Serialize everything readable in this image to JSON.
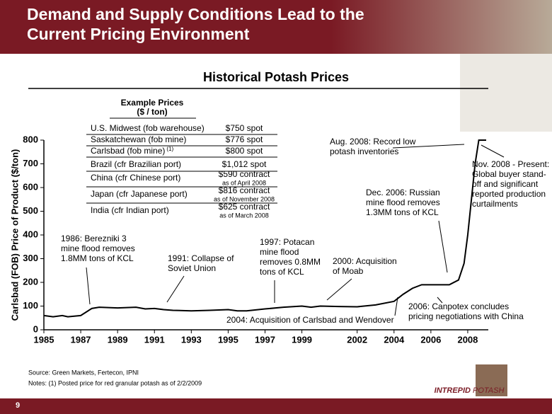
{
  "header": {
    "title_lines": [
      "Demand and Supply Conditions Lead to the",
      "Current Pricing Environment"
    ],
    "page_number": "9"
  },
  "price_table": {
    "title": "Example Prices",
    "subtitle": "($ / ton)",
    "rows": [
      {
        "label": "U.S. Midwest (fob warehouse)",
        "price": "$750 spot"
      },
      {
        "label": "Saskatchewan (fob mine)",
        "price": "$776 spot"
      },
      {
        "label": "Carlsbad (fob mine)",
        "footnote": "(1)",
        "price": "$800 spot"
      },
      {
        "label": "Brazil (cfr Brazilian port)",
        "price": "$1,012 spot"
      },
      {
        "label": "China (cfr Chinese port)",
        "price": "$590 contract",
        "note": "as of April 2008"
      },
      {
        "label": "Japan (cfr Japanese port)",
        "price": "$816 contract",
        "note": "as of November 2008"
      },
      {
        "label": "India (cfr Indian port)",
        "price": "$625 contract",
        "note": "as of March 2008"
      }
    ]
  },
  "chart_data": {
    "type": "line",
    "title": "Historical Potash Prices",
    "y_label": "Carlsbad (FOB) Price of Product  ($/ton)",
    "x": [
      1985,
      1985.5,
      1986,
      1986.3,
      1987,
      1987.3,
      1987.6,
      1988,
      1989,
      1990,
      1990.5,
      1991,
      1991.5,
      1992,
      1993,
      1994,
      1995,
      1995.5,
      1996,
      1997,
      1998,
      1999,
      1999.5,
      2000,
      2001,
      2002,
      2003,
      2004,
      2004.5,
      2005,
      2005.5,
      2006,
      2007,
      2007.5,
      2007.8,
      2008,
      2008.2,
      2008.4,
      2008.6,
      2009
    ],
    "series": [
      {
        "color": "#000000",
        "values": [
          60,
          55,
          60,
          55,
          60,
          75,
          90,
          95,
          92,
          95,
          88,
          90,
          85,
          82,
          80,
          82,
          85,
          80,
          80,
          88,
          95,
          100,
          95,
          100,
          98,
          97,
          105,
          120,
          150,
          175,
          190,
          190,
          190,
          210,
          280,
          400,
          550,
          700,
          800,
          800
        ]
      }
    ],
    "xlim": [
      1985,
      2009.5
    ],
    "ylim": [
      0,
      800
    ],
    "xticks": [
      1985,
      1987,
      1989,
      1991,
      1993,
      1995,
      1997,
      1999,
      2002,
      2004,
      2006,
      2008
    ],
    "yticks": [
      0,
      100,
      200,
      300,
      400,
      500,
      600,
      700,
      800
    ],
    "grid": false,
    "annotations": [
      [
        "1986: Berezniki 3",
        "mine flood removes",
        "1.8MM tons of KCL"
      ],
      [
        "1991: Collapse of",
        "Soviet Union"
      ],
      [
        "1997: Potacan",
        "mine flood",
        "removes 0.8MM",
        "tons of KCL"
      ],
      [
        "2000: Acquisition",
        "of Moab"
      ],
      [
        "2004: Acquisition of Carlsbad and Wendover"
      ],
      [
        "2006: Canpotex concludes",
        "pricing negotiations with China"
      ],
      [
        "Dec. 2006: Russian",
        "mine flood removes",
        "1.3MM tons of KCL"
      ],
      [
        "Aug. 2008: Record low",
        "potash inventories"
      ],
      [
        "Nov. 2008 - Present:",
        "Global buyer stand-",
        "off and significant",
        "reported production",
        "curtailments"
      ]
    ]
  },
  "footer": {
    "source": "Source: Green Markets, Fertecon, IPNI",
    "notes": "Notes: (1) Posted price for red granular potash as of 2/2/2009",
    "logo_left": "INTREPID",
    "logo_right": "POTASH"
  }
}
